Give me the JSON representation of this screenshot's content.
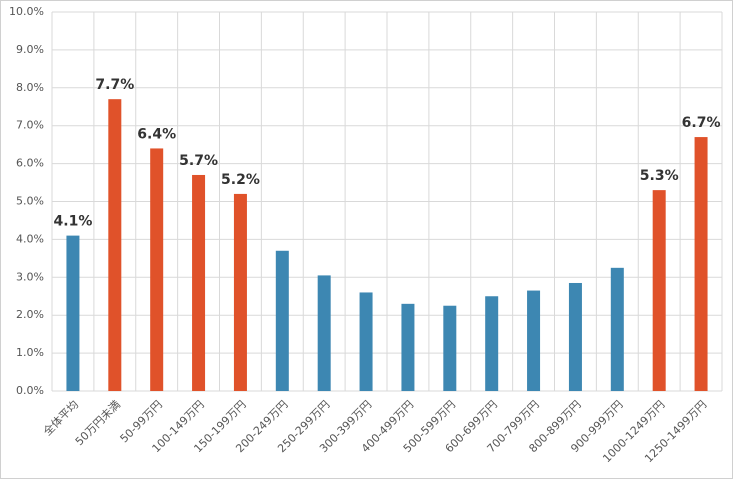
{
  "chart_data": {
    "type": "bar",
    "categories": [
      "全体平均",
      "50万円未満",
      "50-99万円",
      "100-149万円",
      "150-199万円",
      "200-249万円",
      "250-299万円",
      "300-399万円",
      "400-499万円",
      "500-599万円",
      "600-699万円",
      "700-799万円",
      "800-899万円",
      "900-999万円",
      "1000-1249万円",
      "1250-1499万円"
    ],
    "values": [
      4.1,
      7.7,
      6.4,
      5.7,
      5.2,
      3.7,
      3.05,
      2.6,
      2.3,
      2.25,
      2.5,
      2.65,
      2.85,
      3.25,
      5.3,
      6.7
    ],
    "value_labels": [
      "4.1%",
      "7.7%",
      "6.4%",
      "5.7%",
      "5.2%",
      null,
      null,
      null,
      null,
      null,
      null,
      null,
      null,
      null,
      "5.3%",
      "6.7%"
    ],
    "colors": [
      "#3d87b2",
      "#e0522a",
      "#e0522a",
      "#e0522a",
      "#e0522a",
      "#3d87b2",
      "#3d87b2",
      "#3d87b2",
      "#3d87b2",
      "#3d87b2",
      "#3d87b2",
      "#3d87b2",
      "#3d87b2",
      "#3d87b2",
      "#e0522a",
      "#e0522a"
    ],
    "ylim": [
      0,
      10
    ],
    "yticks": [
      {
        "value": 0,
        "label": "0.0%"
      },
      {
        "value": 1,
        "label": "1.0%"
      },
      {
        "value": 2,
        "label": "2.0%"
      },
      {
        "value": 3,
        "label": "3.0%"
      },
      {
        "value": 4,
        "label": "4.0%"
      },
      {
        "value": 5,
        "label": "5.0%"
      },
      {
        "value": 6,
        "label": "6.0%"
      },
      {
        "value": 7,
        "label": "7.0%"
      },
      {
        "value": 8,
        "label": "8.0%"
      },
      {
        "value": 9,
        "label": "9.0%"
      },
      {
        "value": 10,
        "label": "10.0%"
      }
    ],
    "grid": true
  }
}
